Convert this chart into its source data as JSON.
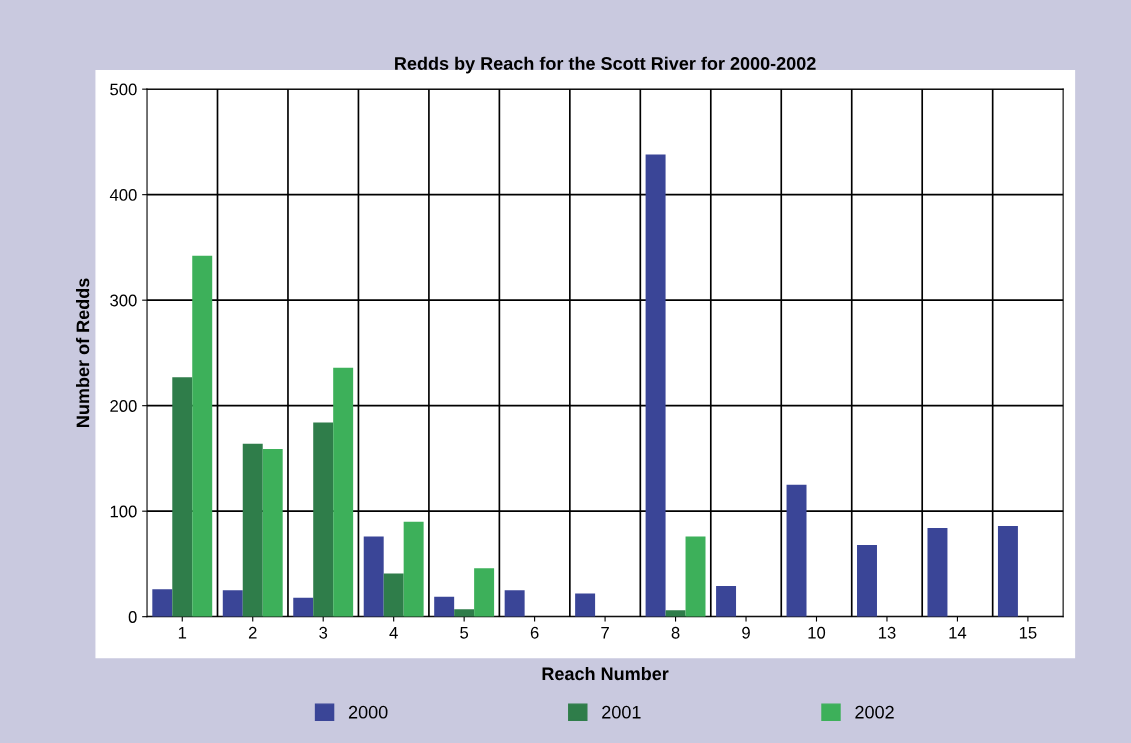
{
  "chart_data": {
    "type": "bar",
    "title": "Redds by Reach for the Scott River for 2000-2002",
    "xlabel": "Reach Number",
    "ylabel": "Number of Redds",
    "categories": [
      "1",
      "2",
      "3",
      "4",
      "5",
      "6",
      "7",
      "8",
      "9",
      "10",
      "13",
      "14",
      "15"
    ],
    "series": [
      {
        "name": "2000",
        "color": "#3a4597",
        "values": [
          26,
          25,
          18,
          76,
          19,
          25,
          22,
          438,
          29,
          125,
          68,
          84,
          86
        ]
      },
      {
        "name": "2001",
        "color": "#2f7d4a",
        "values": [
          227,
          164,
          184,
          41,
          7,
          null,
          null,
          6,
          null,
          null,
          null,
          null,
          null
        ]
      },
      {
        "name": "2002",
        "color": "#3db05a",
        "values": [
          342,
          159,
          236,
          90,
          46,
          null,
          null,
          76,
          null,
          null,
          null,
          null,
          null
        ]
      }
    ],
    "ylim": [
      0,
      500
    ],
    "yticks": [
      0,
      100,
      200,
      300,
      400,
      500
    ],
    "grid": true,
    "legend": "bottom"
  }
}
